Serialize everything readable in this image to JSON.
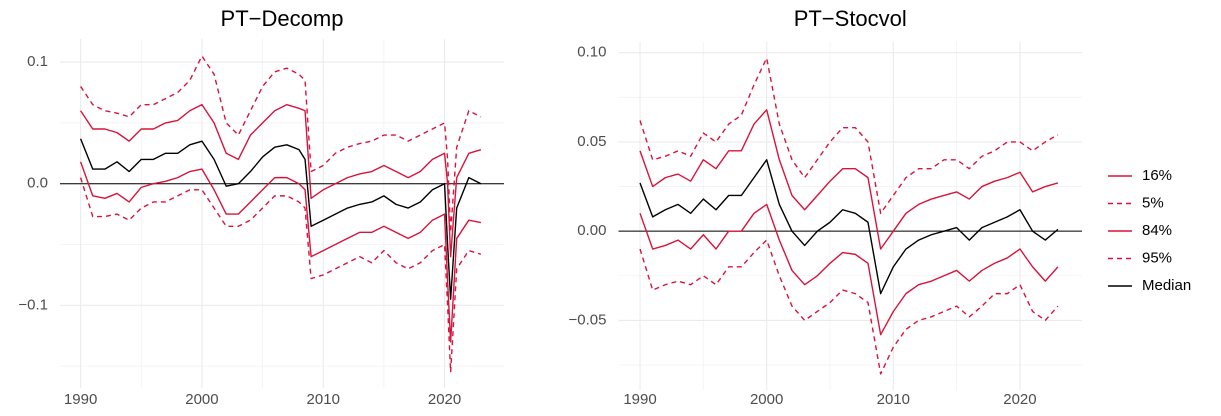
{
  "chart_data": [
    {
      "type": "line",
      "title": "PT−Decomp",
      "x": [
        1990,
        1991,
        1992,
        1993,
        1994,
        1995,
        1996,
        1997,
        1998,
        1999,
        2000,
        2001,
        2002,
        2003,
        2004,
        2005,
        2006,
        2007,
        2008,
        2008.5,
        2009,
        2010,
        2011,
        2012,
        2013,
        2014,
        2015,
        2016,
        2017,
        2018,
        2019,
        2020,
        2020.25,
        2020.5,
        2021,
        2022,
        2023
      ],
      "series": [
        {
          "name": "16%",
          "color": "#d7143c",
          "dashed": false,
          "values": [
            0.018,
            -0.01,
            -0.012,
            -0.008,
            -0.015,
            -0.003,
            0,
            0.002,
            0.005,
            0.01,
            0.012,
            -0.005,
            -0.025,
            -0.025,
            -0.015,
            -0.005,
            0.005,
            0.005,
            0,
            -0.005,
            -0.06,
            -0.055,
            -0.05,
            -0.045,
            -0.04,
            -0.04,
            -0.035,
            -0.04,
            -0.045,
            -0.04,
            -0.03,
            -0.025,
            -0.08,
            -0.13,
            -0.045,
            -0.03,
            -0.032
          ]
        },
        {
          "name": "5%",
          "color": "#d7143c",
          "dashed": true,
          "values": [
            0.005,
            -0.027,
            -0.027,
            -0.025,
            -0.03,
            -0.02,
            -0.015,
            -0.015,
            -0.01,
            -0.005,
            -0.005,
            -0.02,
            -0.035,
            -0.035,
            -0.03,
            -0.02,
            -0.01,
            -0.01,
            -0.015,
            -0.02,
            -0.078,
            -0.075,
            -0.07,
            -0.065,
            -0.06,
            -0.065,
            -0.055,
            -0.065,
            -0.07,
            -0.065,
            -0.055,
            -0.05,
            -0.1,
            -0.155,
            -0.07,
            -0.055,
            -0.058
          ]
        },
        {
          "name": "84%",
          "color": "#d7143c",
          "dashed": false,
          "values": [
            0.06,
            0.045,
            0.045,
            0.042,
            0.035,
            0.045,
            0.045,
            0.05,
            0.052,
            0.06,
            0.065,
            0.05,
            0.025,
            0.02,
            0.04,
            0.05,
            0.06,
            0.065,
            0.062,
            0.06,
            -0.012,
            -0.005,
            0,
            0.005,
            0.008,
            0.01,
            0.015,
            0.01,
            0.005,
            0.01,
            0.02,
            0.025,
            0,
            -0.06,
            0.005,
            0.025,
            0.028
          ]
        },
        {
          "name": "95%",
          "color": "#d7143c",
          "dashed": true,
          "values": [
            0.08,
            0.065,
            0.06,
            0.058,
            0.055,
            0.065,
            0.065,
            0.07,
            0.075,
            0.085,
            0.105,
            0.09,
            0.05,
            0.04,
            0.06,
            0.08,
            0.092,
            0.095,
            0.09,
            0.085,
            0.01,
            0.015,
            0.025,
            0.03,
            0.033,
            0.035,
            0.04,
            0.04,
            0.035,
            0.04,
            0.045,
            0.05,
            0.02,
            -0.04,
            0.03,
            0.06,
            0.055
          ]
        },
        {
          "name": "Median",
          "color": "#000000",
          "dashed": false,
          "values": [
            0.037,
            0.012,
            0.012,
            0.018,
            0.01,
            0.02,
            0.02,
            0.025,
            0.025,
            0.032,
            0.035,
            0.02,
            -0.002,
            0,
            0.01,
            0.022,
            0.03,
            0.032,
            0.028,
            0.02,
            -0.035,
            -0.03,
            -0.025,
            -0.02,
            -0.017,
            -0.015,
            -0.01,
            -0.017,
            -0.02,
            -0.015,
            -0.005,
            0,
            -0.05,
            -0.095,
            -0.02,
            0.005,
            0
          ]
        }
      ],
      "xlim": [
        1988.3,
        2024.9
      ],
      "xticks": [
        1990,
        2000,
        2010,
        2020
      ],
      "xminorticks": [
        1995,
        2005,
        2015
      ],
      "ylim": [
        -0.168,
        0.119
      ],
      "yticks": [
        {
          "value": -0.1,
          "label": "−0.1"
        },
        {
          "value": 0,
          "label": "0.0"
        },
        0.1
      ],
      "yminorticks": [
        -0.15,
        -0.05,
        0.05
      ],
      "reference_line": 0,
      "reference_color": "#000000",
      "grid": true
    },
    {
      "type": "line",
      "title": "PT−Stocvol",
      "x": [
        1990,
        1991,
        1992,
        1993,
        1994,
        1995,
        1996,
        1997,
        1998,
        1999,
        2000,
        2001,
        2002,
        2003,
        2004,
        2005,
        2006,
        2007,
        2008,
        2009,
        2010,
        2011,
        2012,
        2013,
        2014,
        2015,
        2016,
        2017,
        2018,
        2019,
        2020,
        2021,
        2022,
        2023
      ],
      "series": [
        {
          "name": "16%",
          "color": "#d7143c",
          "dashed": false,
          "values": [
            0.01,
            -0.01,
            -0.008,
            -0.005,
            -0.01,
            -0.002,
            -0.01,
            0,
            0,
            0.01,
            0.015,
            -0.005,
            -0.022,
            -0.03,
            -0.025,
            -0.018,
            -0.012,
            -0.013,
            -0.018,
            -0.058,
            -0.045,
            -0.035,
            -0.03,
            -0.028,
            -0.025,
            -0.022,
            -0.028,
            -0.022,
            -0.018,
            -0.015,
            -0.01,
            -0.02,
            -0.028,
            -0.02
          ]
        },
        {
          "name": "5%",
          "color": "#d7143c",
          "dashed": true,
          "values": [
            -0.01,
            -0.033,
            -0.03,
            -0.028,
            -0.03,
            -0.025,
            -0.03,
            -0.02,
            -0.02,
            -0.012,
            -0.005,
            -0.025,
            -0.042,
            -0.05,
            -0.045,
            -0.04,
            -0.033,
            -0.035,
            -0.04,
            -0.08,
            -0.065,
            -0.055,
            -0.05,
            -0.048,
            -0.045,
            -0.042,
            -0.048,
            -0.042,
            -0.035,
            -0.035,
            -0.03,
            -0.045,
            -0.05,
            -0.042
          ]
        },
        {
          "name": "84%",
          "color": "#d7143c",
          "dashed": false,
          "values": [
            0.045,
            0.025,
            0.03,
            0.032,
            0.028,
            0.04,
            0.035,
            0.045,
            0.045,
            0.06,
            0.068,
            0.04,
            0.02,
            0.012,
            0.02,
            0.028,
            0.035,
            0.035,
            0.03,
            -0.01,
            0,
            0.01,
            0.015,
            0.018,
            0.02,
            0.022,
            0.018,
            0.025,
            0.028,
            0.03,
            0.033,
            0.022,
            0.025,
            0.027
          ]
        },
        {
          "name": "95%",
          "color": "#d7143c",
          "dashed": true,
          "values": [
            0.062,
            0.04,
            0.042,
            0.045,
            0.042,
            0.055,
            0.05,
            0.06,
            0.065,
            0.082,
            0.097,
            0.06,
            0.04,
            0.03,
            0.04,
            0.05,
            0.058,
            0.058,
            0.05,
            0.01,
            0.02,
            0.03,
            0.035,
            0.035,
            0.04,
            0.04,
            0.035,
            0.042,
            0.045,
            0.05,
            0.05,
            0.045,
            0.05,
            0.054
          ]
        },
        {
          "name": "Median",
          "color": "#000000",
          "dashed": false,
          "values": [
            0.027,
            0.008,
            0.012,
            0.015,
            0.01,
            0.018,
            0.012,
            0.02,
            0.02,
            0.03,
            0.04,
            0.015,
            0,
            -0.008,
            0,
            0.005,
            0.012,
            0.01,
            0.005,
            -0.035,
            -0.02,
            -0.01,
            -0.005,
            -0.002,
            0,
            0.002,
            -0.005,
            0.002,
            0.005,
            0.008,
            0.012,
            0,
            -0.005,
            0.001
          ]
        }
      ],
      "xlim": [
        1988.3,
        2024.9
      ],
      "xticks": [
        1990,
        2000,
        2010,
        2020
      ],
      "xminorticks": [
        1995,
        2005,
        2015
      ],
      "ylim": [
        -0.089,
        0.106
      ],
      "yticks": [
        {
          "value": -0.05,
          "label": "−0.05"
        },
        {
          "value": 0,
          "label": "0.00"
        },
        {
          "value": 0.05,
          "label": "0.05"
        },
        {
          "value": 0.1,
          "label": "0.10"
        }
      ],
      "yminorticks": [
        -0.075,
        -0.025,
        0.025,
        0.075
      ],
      "reference_line": 0,
      "reference_color": "#000000",
      "grid": true,
      "legend": "right"
    }
  ]
}
